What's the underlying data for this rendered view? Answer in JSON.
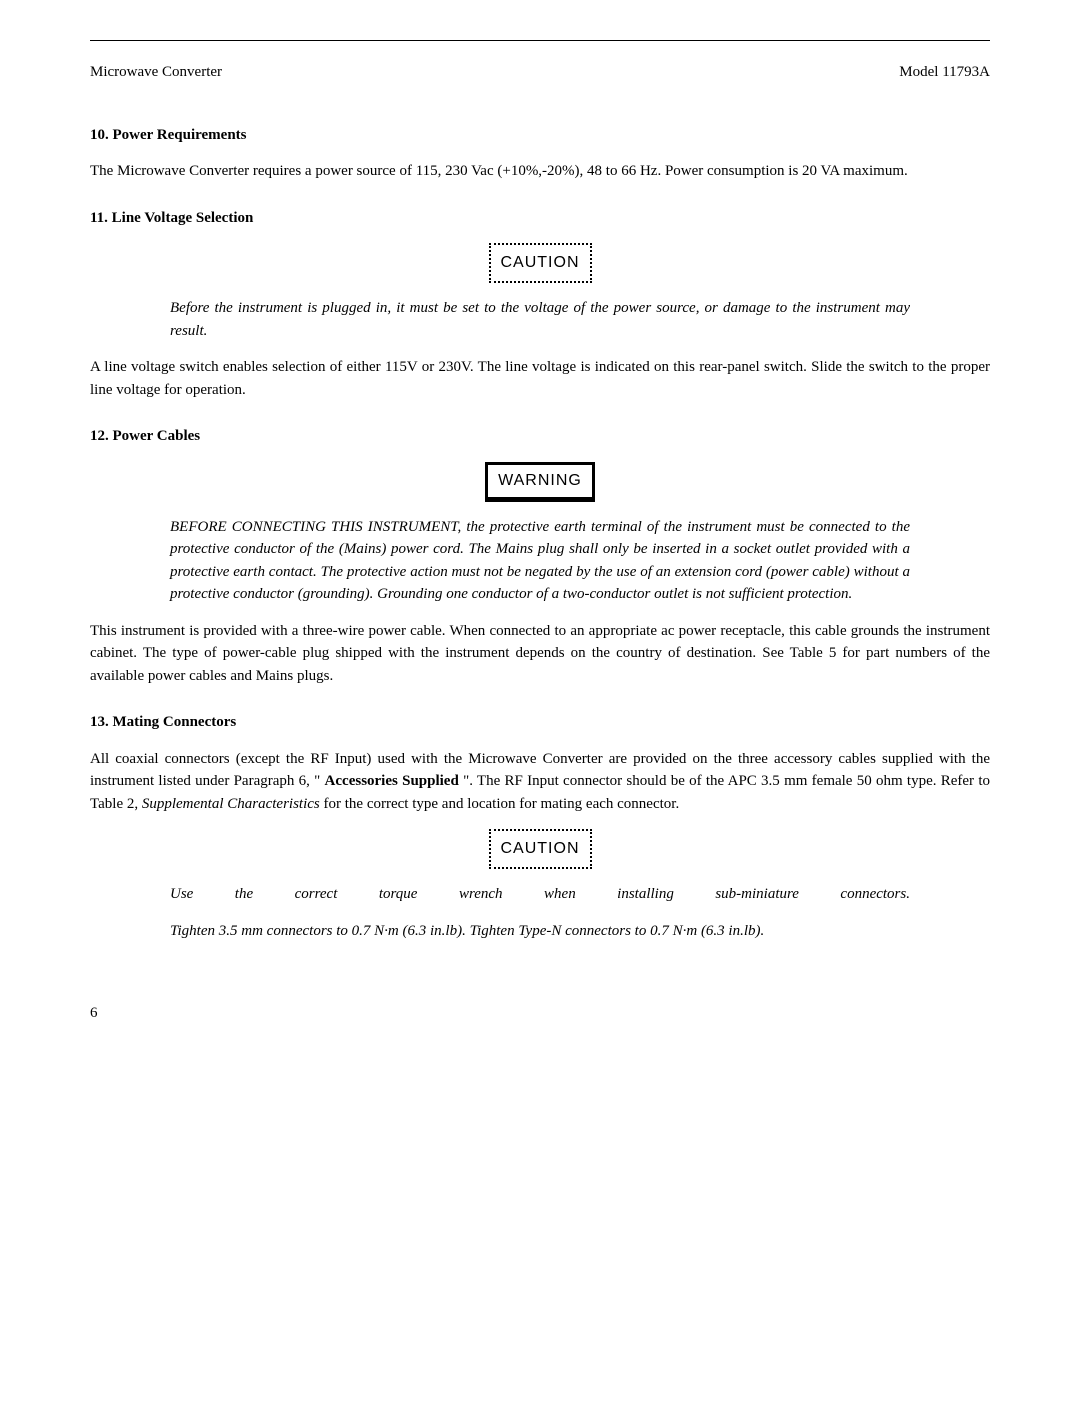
{
  "header": {
    "left": "Microwave Converter",
    "right": "Model 11793A"
  },
  "section10": {
    "heading": "10.  Power Requirements",
    "para": "The Microwave Converter requires a power source of 115, 230 Vac (+10%,-20%), 48 to 66 Hz. Power consumption is 20 VA maximum."
  },
  "section11": {
    "heading": "11.   Line Voltage Selection",
    "caution_label": "CAUTION",
    "caution_text": "Before the instrument is plugged in, it must be set to the voltage of the power source, or damage to the instrument may result.",
    "para": "A line voltage switch enables selection of either 115V or 230V. The line voltage is indicated on this rear-panel switch. Slide the switch to the proper line voltage for operation."
  },
  "section12": {
    "heading": "12.   Power Cables",
    "warning_label": "WARNING",
    "warning_text": "BEFORE CONNECTING THIS INSTRUMENT, the protective earth terminal of the instrument must be connected to the protective conductor of the (Mains) power cord. The Mains plug shall only be inserted in a socket outlet provided with a protective earth contact. The protective action must not be negated by the use of an extension cord (power cable) without a protective conductor (grounding). Grounding one conductor of a two-conductor outlet is not sufficient protection.",
    "para": "This instrument is provided with a three-wire power cable. When connected to an appropriate ac power receptacle, this cable grounds the instrument cabinet. The type of power-cable plug shipped with the instrument depends on the country of destination. See Table 5 for part numbers of the available power cables and Mains plugs."
  },
  "section13": {
    "heading": "13.   Mating Connectors",
    "para_prefix": "All coaxial connectors (except the RF Input) used with the Microwave Converter are provided on the three accessory cables supplied with the instrument listed under Paragraph 6, \" ",
    "para_bold1": "Accessories Supplied",
    "para_mid": " \". The RF Input connector should be of the APC 3.5 mm female 50 ohm type. Refer to Table 2, ",
    "para_italic": "Supplemental Characteristics",
    "para_suffix": " for the correct type and location for mating each connector.",
    "caution_label": "CAUTION",
    "caution_text1": "Use the correct torque wrench when installing sub-miniature connectors.",
    "caution_text2": "Tighten 3.5 mm connectors to 0.7 N·m (6.3 in.lb). Tighten Type-N connectors to 0.7 N·m (6.3 in.lb)."
  },
  "page_number": "6"
}
